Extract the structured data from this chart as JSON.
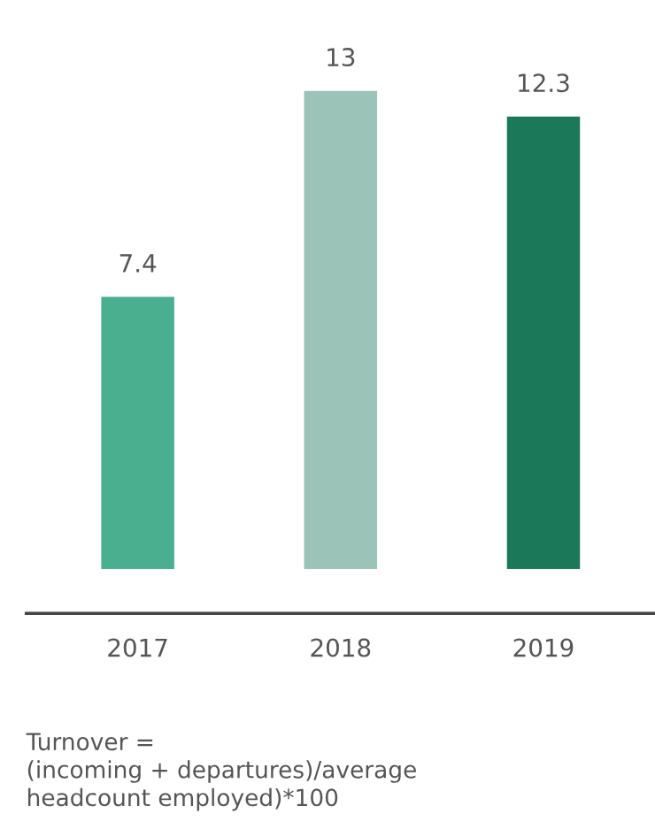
{
  "chart_data": {
    "type": "bar",
    "categories": [
      "2017",
      "2018",
      "2019"
    ],
    "values": [
      7.4,
      13,
      12.3
    ],
    "colors": [
      "#4aaf8f",
      "#9cc3b8",
      "#1b7858"
    ],
    "data_labels": true,
    "grid": false,
    "annotations": [
      "Turnover =\n(incoming + departures)/average\nheadcount employed)*100"
    ]
  }
}
